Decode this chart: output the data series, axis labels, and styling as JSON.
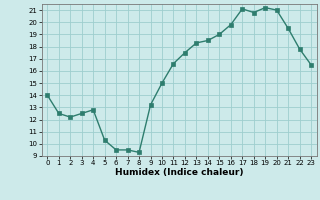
{
  "x": [
    0,
    1,
    2,
    3,
    4,
    5,
    6,
    7,
    8,
    9,
    10,
    11,
    12,
    13,
    14,
    15,
    16,
    17,
    18,
    19,
    20,
    21,
    22,
    23
  ],
  "y": [
    14,
    12.5,
    12.2,
    12.5,
    12.8,
    10.3,
    9.5,
    9.5,
    9.3,
    13.2,
    15.0,
    16.6,
    17.5,
    18.3,
    18.5,
    19.0,
    19.8,
    21.1,
    20.8,
    21.2,
    21.0,
    19.5,
    17.8,
    16.5
  ],
  "xlabel": "Humidex (Indice chaleur)",
  "xlim": [
    -0.5,
    23.5
  ],
  "ylim": [
    9,
    21.5
  ],
  "yticks": [
    9,
    10,
    11,
    12,
    13,
    14,
    15,
    16,
    17,
    18,
    19,
    20,
    21
  ],
  "xticks": [
    0,
    1,
    2,
    3,
    4,
    5,
    6,
    7,
    8,
    9,
    10,
    11,
    12,
    13,
    14,
    15,
    16,
    17,
    18,
    19,
    20,
    21,
    22,
    23
  ],
  "line_color": "#2e7d6e",
  "marker_color": "#2e7d6e",
  "bg_color": "#cdeaea",
  "grid_color": "#9ecece"
}
